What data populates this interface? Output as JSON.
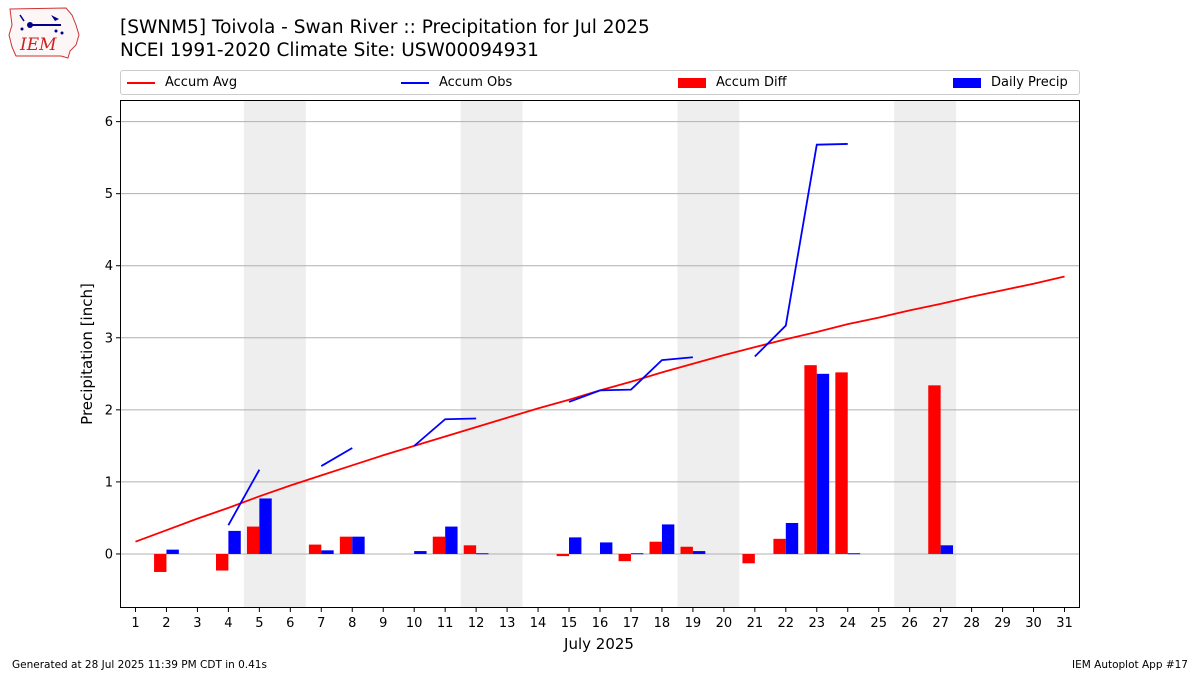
{
  "header": {
    "title_line1": "[SWNM5] Toivola - Swan River :: Precipitation for Jul 2025",
    "title_line2": "NCEI 1991-2020 Climate Site: USW00094931"
  },
  "logo": {
    "text": "IEM",
    "icon": "iem-iowa-logo-icon"
  },
  "footer": {
    "left": "Generated at 28 Jul 2025 11:39 PM CDT in 0.41s",
    "right": "IEM Autoplot App #17"
  },
  "legend": [
    {
      "label": "Accum Avg",
      "kind": "line",
      "color": "#ff0000"
    },
    {
      "label": "Accum Obs",
      "kind": "line",
      "color": "#0000ff"
    },
    {
      "label": "Accum Diff",
      "kind": "box",
      "color": "#ff0000"
    },
    {
      "label": "Daily Precip",
      "kind": "box",
      "color": "#0000ff"
    }
  ],
  "chart_data": {
    "type": "bar",
    "xlabel": "July 2025",
    "ylabel": "Precipitation [inch]",
    "xlim": [
      0.5,
      31.5
    ],
    "ylim": [
      -0.75,
      6.3
    ],
    "yticks": [
      0,
      1,
      2,
      3,
      4,
      5,
      6
    ],
    "xticks": [
      1,
      2,
      3,
      4,
      5,
      6,
      7,
      8,
      9,
      10,
      11,
      12,
      13,
      14,
      15,
      16,
      17,
      18,
      19,
      20,
      21,
      22,
      23,
      24,
      25,
      26,
      27,
      28,
      29,
      30,
      31
    ],
    "grid": "horizontal",
    "weekend_shading": [
      [
        4.5,
        6.5
      ],
      [
        11.5,
        13.5
      ],
      [
        18.5,
        20.5
      ],
      [
        25.5,
        27.5
      ]
    ],
    "colors": {
      "avg": "#ff0000",
      "obs": "#0000ff",
      "diff": "#ff0000",
      "daily": "#0000ff",
      "shade": "#eeeeee"
    },
    "accum_avg": {
      "x": [
        1,
        2,
        3,
        4,
        5,
        6,
        7,
        8,
        9,
        10,
        11,
        12,
        13,
        14,
        15,
        16,
        17,
        18,
        19,
        20,
        21,
        22,
        23,
        24,
        25,
        26,
        27,
        28,
        29,
        30,
        31
      ],
      "values": [
        0.17,
        0.33,
        0.49,
        0.64,
        0.8,
        0.95,
        1.09,
        1.23,
        1.37,
        1.5,
        1.63,
        1.76,
        1.89,
        2.02,
        2.14,
        2.27,
        2.39,
        2.52,
        2.64,
        2.76,
        2.87,
        2.98,
        3.08,
        3.19,
        3.28,
        3.38,
        3.47,
        3.57,
        3.66,
        3.75,
        3.85
      ]
    },
    "accum_obs_segments": [
      {
        "x": [
          4,
          5
        ],
        "values": [
          0.4,
          1.17
        ]
      },
      {
        "x": [
          7,
          8
        ],
        "values": [
          1.22,
          1.47
        ]
      },
      {
        "x": [
          10,
          11,
          12
        ],
        "values": [
          1.5,
          1.87,
          1.88
        ]
      },
      {
        "x": [
          15,
          16,
          17,
          18,
          19
        ],
        "values": [
          2.11,
          2.27,
          2.28,
          2.69,
          2.73
        ]
      },
      {
        "x": [
          21,
          22,
          23,
          24
        ],
        "values": [
          2.74,
          3.17,
          5.68,
          5.69
        ]
      }
    ],
    "accum_diff": [
      {
        "day": 2,
        "value": -0.25
      },
      {
        "day": 4,
        "value": -0.23
      },
      {
        "day": 5,
        "value": 0.38
      },
      {
        "day": 7,
        "value": 0.13
      },
      {
        "day": 8,
        "value": 0.24
      },
      {
        "day": 11,
        "value": 0.24
      },
      {
        "day": 12,
        "value": 0.12
      },
      {
        "day": 15,
        "value": -0.03
      },
      {
        "day": 17,
        "value": -0.1
      },
      {
        "day": 18,
        "value": 0.17
      },
      {
        "day": 19,
        "value": 0.1
      },
      {
        "day": 21,
        "value": -0.13
      },
      {
        "day": 22,
        "value": 0.21
      },
      {
        "day": 23,
        "value": 2.62
      },
      {
        "day": 24,
        "value": 2.52
      },
      {
        "day": 27,
        "value": 2.34
      }
    ],
    "daily_precip": [
      {
        "day": 2,
        "value": 0.06
      },
      {
        "day": 4,
        "value": 0.32
      },
      {
        "day": 5,
        "value": 0.77
      },
      {
        "day": 7,
        "value": 0.05
      },
      {
        "day": 8,
        "value": 0.24
      },
      {
        "day": 10,
        "value": 0.04
      },
      {
        "day": 11,
        "value": 0.38
      },
      {
        "day": 12,
        "value": 0.01
      },
      {
        "day": 15,
        "value": 0.23
      },
      {
        "day": 16,
        "value": 0.16
      },
      {
        "day": 17,
        "value": 0.01
      },
      {
        "day": 18,
        "value": 0.41
      },
      {
        "day": 19,
        "value": 0.04
      },
      {
        "day": 22,
        "value": 0.43
      },
      {
        "day": 23,
        "value": 2.5
      },
      {
        "day": 24,
        "value": 0.01
      },
      {
        "day": 27,
        "value": 0.12
      }
    ]
  }
}
